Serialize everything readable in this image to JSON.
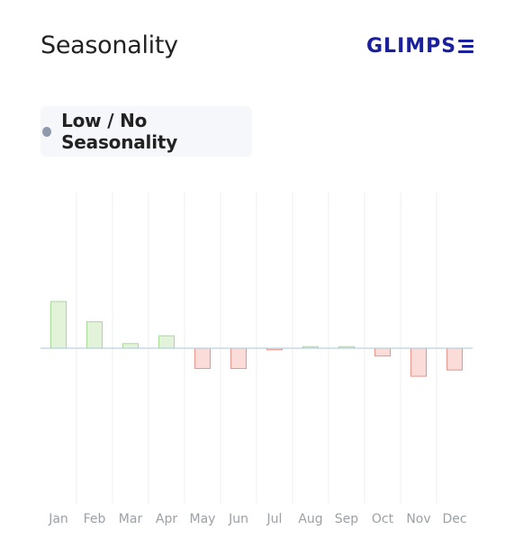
{
  "header": {
    "title": "Seasonality",
    "logo_text": "GLIMPS",
    "logo_icon": "logo-e-icon",
    "logo_color": "#1a1f9c"
  },
  "badge": {
    "label": "Low / No Seasonality",
    "dot_color": "#8e99ab",
    "background": "#f5f7fa"
  },
  "chart_data": {
    "type": "bar",
    "categories": [
      "Jan",
      "Feb",
      "Mar",
      "Apr",
      "May",
      "Jun",
      "Jul",
      "Aug",
      "Sep",
      "Oct",
      "Nov",
      "Dec"
    ],
    "values": [
      30,
      17,
      3,
      8,
      -13,
      -13,
      -1,
      1,
      1,
      -5,
      -18,
      -14
    ],
    "ylim": [
      -100,
      100
    ],
    "grid": "vertical",
    "colors": {
      "positive_fill": "#e2f3da",
      "positive_stroke": "#a8d996",
      "negative_fill": "#fbdcd8",
      "negative_stroke": "#e8968c",
      "baseline": "#a9c6d6",
      "gridline": "#eef0f2",
      "tick_label": "#9aa0a6"
    }
  }
}
